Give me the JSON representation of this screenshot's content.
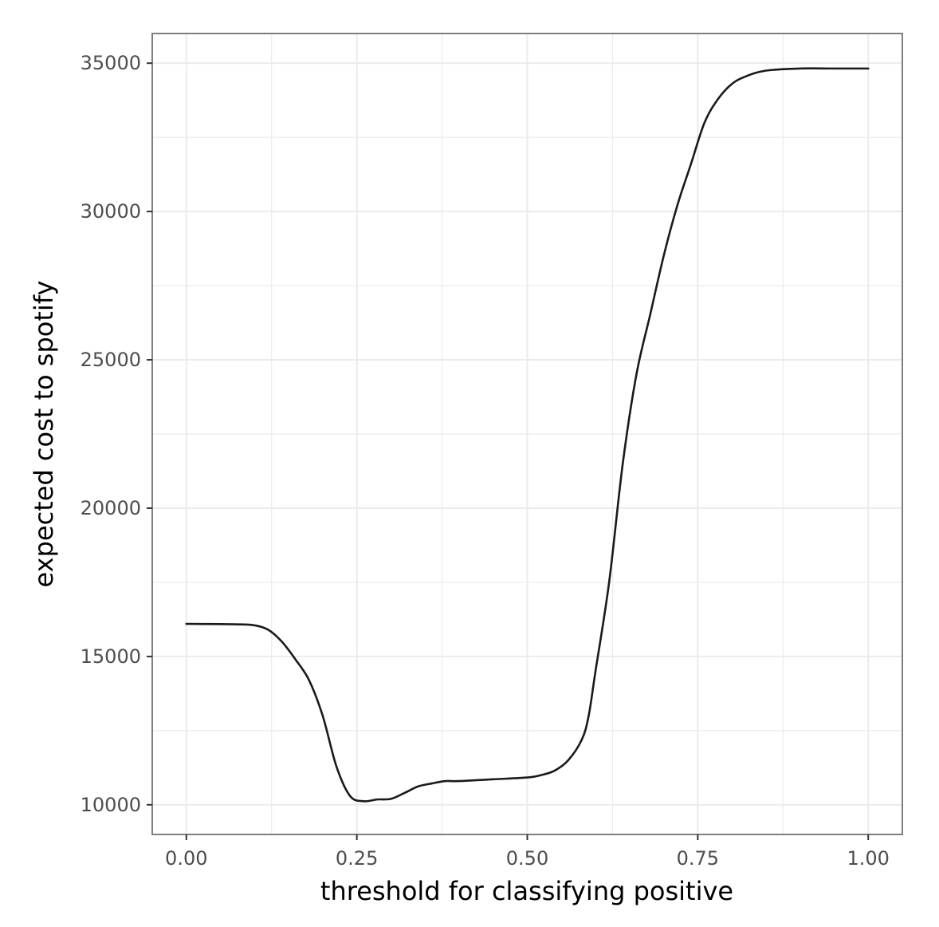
{
  "chart_data": {
    "type": "line",
    "xlabel": "threshold for classifying positive",
    "ylabel": "expected cost to spotify",
    "xlim": [
      -0.05,
      1.05
    ],
    "ylim": [
      9000,
      36000
    ],
    "x_ticks": [
      0.0,
      0.25,
      0.5,
      0.75,
      1.0
    ],
    "x_tick_labels": [
      "0.00",
      "0.25",
      "0.50",
      "0.75",
      "1.00"
    ],
    "y_ticks": [
      10000,
      15000,
      20000,
      25000,
      30000,
      35000
    ],
    "y_tick_labels": [
      "10000",
      "15000",
      "20000",
      "25000",
      "30000",
      "35000"
    ],
    "grid": true,
    "line_color": "#1a1a1a",
    "grid_color": "#ebebeb",
    "x": [
      0.0,
      0.05,
      0.08,
      0.1,
      0.12,
      0.14,
      0.16,
      0.18,
      0.2,
      0.22,
      0.24,
      0.26,
      0.28,
      0.3,
      0.32,
      0.34,
      0.36,
      0.38,
      0.4,
      0.45,
      0.5,
      0.52,
      0.54,
      0.56,
      0.58,
      0.59,
      0.6,
      0.62,
      0.64,
      0.66,
      0.68,
      0.7,
      0.72,
      0.74,
      0.76,
      0.78,
      0.8,
      0.82,
      0.85,
      0.9,
      0.95,
      1.0
    ],
    "y": [
      16100,
      16090,
      16080,
      16050,
      15900,
      15500,
      14900,
      14200,
      13000,
      11300,
      10300,
      10120,
      10180,
      10200,
      10400,
      10620,
      10720,
      10800,
      10800,
      10860,
      10920,
      11000,
      11150,
      11500,
      12200,
      13000,
      14500,
      17500,
      21500,
      24500,
      26500,
      28500,
      30200,
      31600,
      33000,
      33800,
      34300,
      34550,
      34750,
      34820,
      34820,
      34820
    ]
  }
}
